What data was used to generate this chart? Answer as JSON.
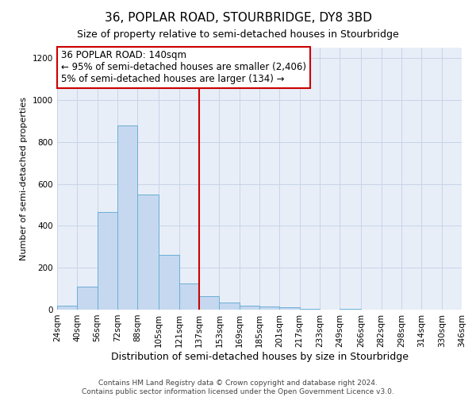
{
  "title": "36, POPLAR ROAD, STOURBRIDGE, DY8 3BD",
  "subtitle": "Size of property relative to semi-detached houses in Stourbridge",
  "xlabel": "Distribution of semi-detached houses by size in Stourbridge",
  "ylabel": "Number of semi-detached properties",
  "bar_color": "#c5d8f0",
  "bar_edge_color": "#6baed6",
  "background_color": "#ffffff",
  "plot_bg_color": "#e8eef8",
  "grid_color": "#c8d4e8",
  "vline_x": 137,
  "vline_color": "#cc0000",
  "bin_edges": [
    24,
    40,
    56,
    72,
    88,
    105,
    121,
    137,
    153,
    169,
    185,
    201,
    217,
    233,
    249,
    266,
    282,
    298,
    314,
    330,
    346
  ],
  "bar_heights": [
    20,
    110,
    465,
    880,
    550,
    260,
    125,
    65,
    35,
    20,
    15,
    10,
    5,
    0,
    5,
    0,
    0,
    0,
    0,
    0
  ],
  "ylim": [
    0,
    1250
  ],
  "yticks": [
    0,
    200,
    400,
    600,
    800,
    1000,
    1200
  ],
  "annotation_title": "36 POPLAR ROAD: 140sqm",
  "annotation_line1": "← 95% of semi-detached houses are smaller (2,406)",
  "annotation_line2": "5% of semi-detached houses are larger (134) →",
  "annotation_box_color": "#ffffff",
  "annotation_box_edge": "#cc0000",
  "footnote1": "Contains HM Land Registry data © Crown copyright and database right 2024.",
  "footnote2": "Contains public sector information licensed under the Open Government Licence v3.0.",
  "title_fontsize": 11,
  "subtitle_fontsize": 9,
  "xlabel_fontsize": 9,
  "ylabel_fontsize": 8,
  "tick_fontsize": 7.5,
  "annotation_fontsize": 8.5,
  "footnote_fontsize": 6.5
}
